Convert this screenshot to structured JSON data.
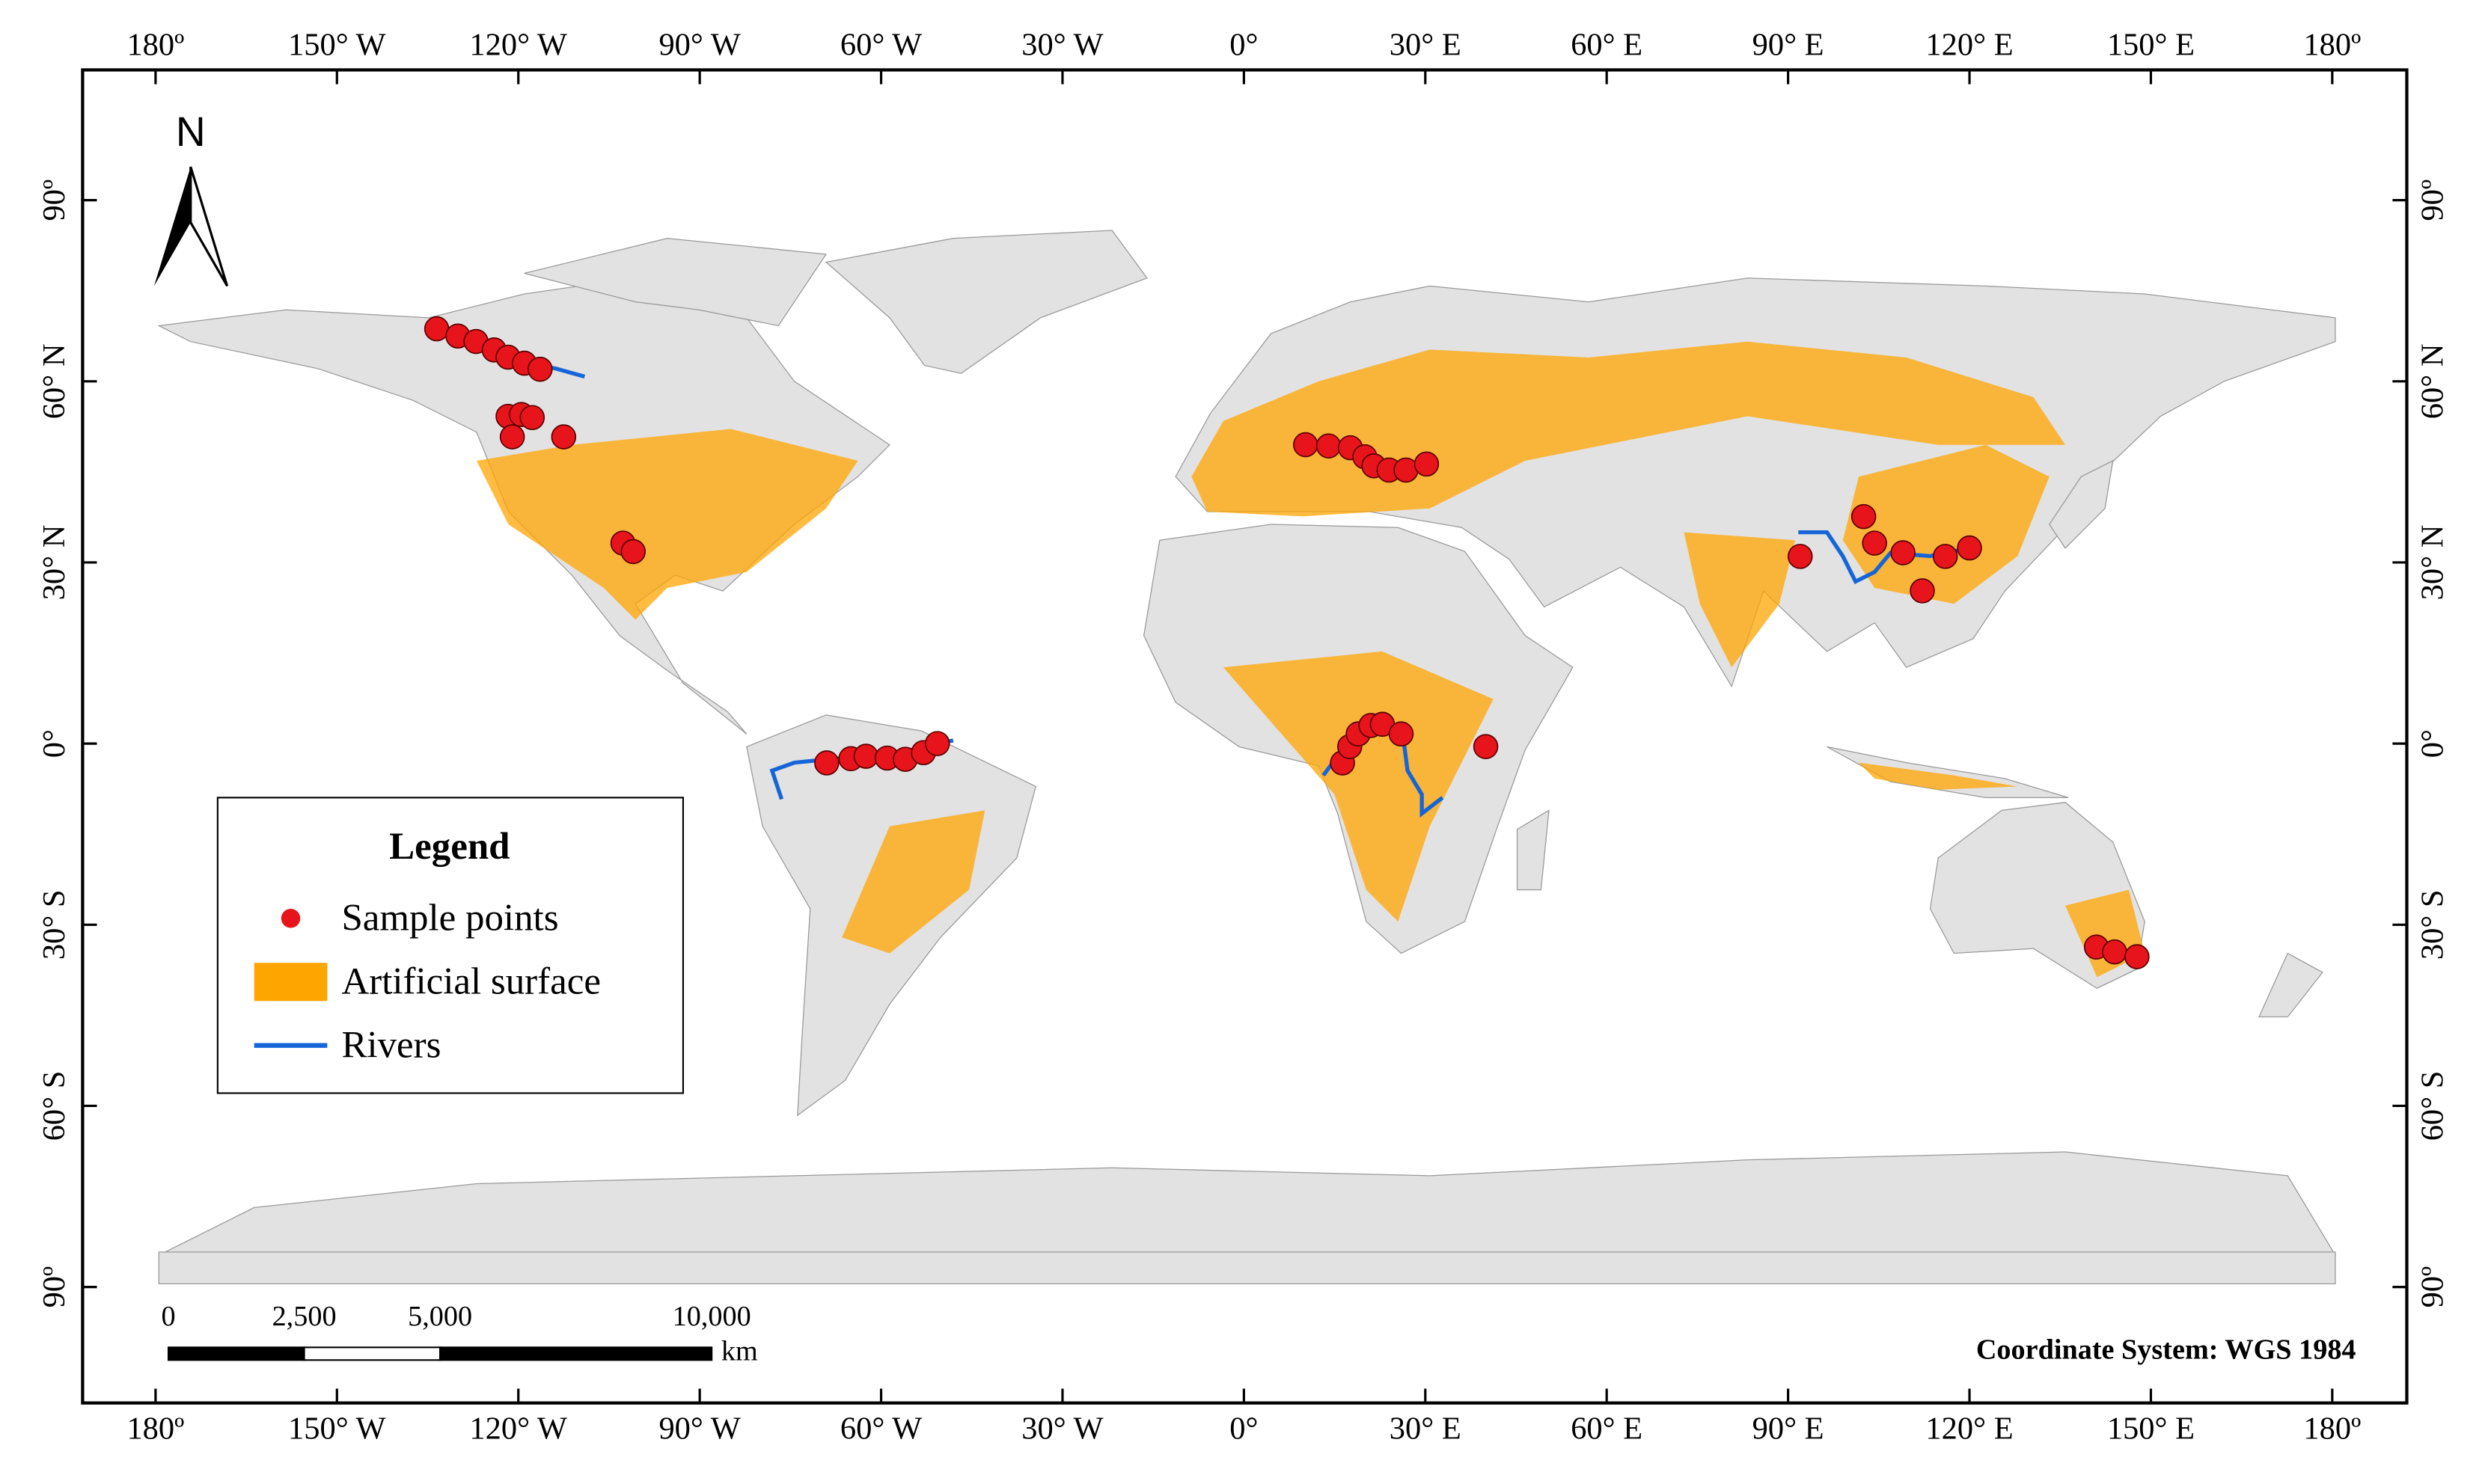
{
  "map": {
    "lon_ticks": [
      {
        "value": -180,
        "label": "180º"
      },
      {
        "value": -150,
        "label": "150° W"
      },
      {
        "value": -120,
        "label": "120° W"
      },
      {
        "value": -90,
        "label": "90° W"
      },
      {
        "value": -60,
        "label": "60° W"
      },
      {
        "value": -30,
        "label": "30° W"
      },
      {
        "value": 0,
        "label": "0°"
      },
      {
        "value": 30,
        "label": "30° E"
      },
      {
        "value": 60,
        "label": "60° E"
      },
      {
        "value": 90,
        "label": "90° E"
      },
      {
        "value": 120,
        "label": "120° E"
      },
      {
        "value": 150,
        "label": "150° E"
      },
      {
        "value": 180,
        "label": "180º"
      }
    ],
    "lat_ticks": [
      {
        "value": 90,
        "label": "90º"
      },
      {
        "value": 60,
        "label": "60° N"
      },
      {
        "value": 30,
        "label": "30° N"
      },
      {
        "value": 0,
        "label": "0°"
      },
      {
        "value": -30,
        "label": "30° S"
      },
      {
        "value": -60,
        "label": "60° S"
      },
      {
        "value": -90,
        "label": "90º"
      }
    ],
    "north": "N",
    "legend": {
      "title": "Legend",
      "items": [
        "Sample points",
        "Artificial surface",
        "Rivers"
      ]
    },
    "scale_bar": {
      "ticks": [
        {
          "value": 0,
          "label": "0"
        },
        {
          "value": 2500,
          "label": "2,500"
        },
        {
          "value": 5000,
          "label": "5,000"
        },
        {
          "value": 10000,
          "label": "10,000"
        }
      ],
      "unit": "km"
    },
    "crs": "Coordinate System: WGS 1984",
    "sample_points": {
      "lon": [
        -133.5,
        -130,
        -127,
        -124,
        -121.7,
        -119,
        -116.4,
        -121.7,
        -119.5,
        -117.7,
        -121,
        -112.5,
        -102.7,
        -101,
        -69,
        -65,
        -62.5,
        -59,
        -56,
        -53,
        -50.7,
        10.2,
        14,
        17.6,
        20,
        21.5,
        24,
        26.8,
        30.2,
        16.3,
        17.5,
        18.9,
        21,
        22.9,
        26,
        40,
        92,
        102.5,
        104.3,
        109,
        112.2,
        116,
        120,
        141,
        144,
        147.7
      ],
      "lat": [
        68.7,
        67.5,
        66.6,
        65.2,
        64,
        63,
        62,
        54.2,
        54.5,
        54,
        50.8,
        50.8,
        33.2,
        31.8,
        -3.2,
        -2.5,
        -2.1,
        -2.4,
        -2.6,
        -1.5,
        0,
        49.5,
        49.3,
        49,
        47.5,
        46,
        45.3,
        45.3,
        46.3,
        -3.2,
        -0.5,
        1.6,
        3,
        3.2,
        1.6,
        -0.5,
        31,
        37.6,
        33.2,
        31.6,
        25.3,
        31,
        32.4,
        -33.7,
        -34.5,
        -35.3
      ]
    }
  }
}
